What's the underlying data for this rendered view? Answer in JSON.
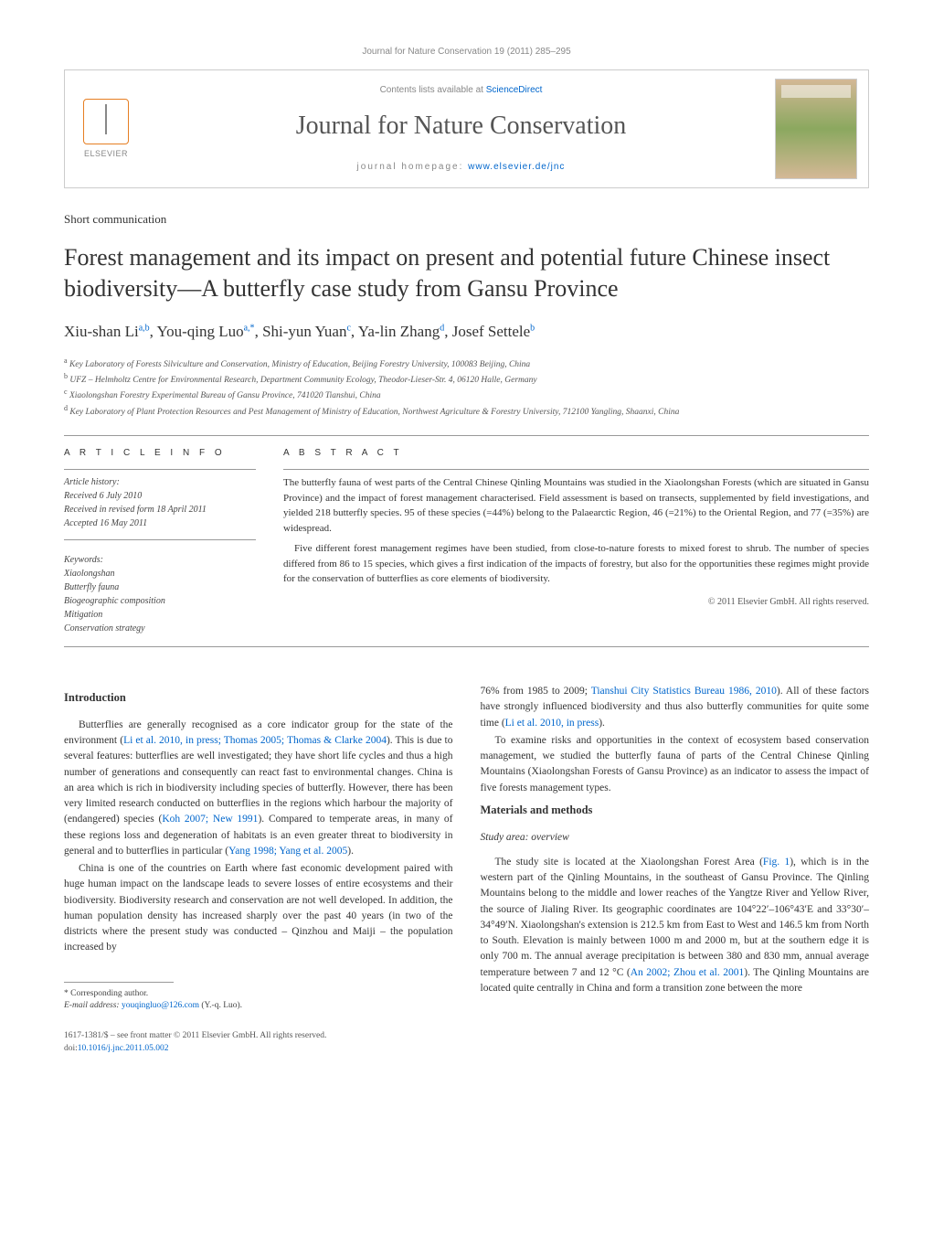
{
  "header": {
    "citation_line": "Journal for Nature Conservation 19 (2011) 285–295",
    "contents_prefix": "Contents lists available at ",
    "contents_link": "ScienceDirect",
    "journal_title": "Journal for Nature Conservation",
    "homepage_prefix": "journal homepage: ",
    "homepage_url": "www.elsevier.de/jnc",
    "elsevier_label": "ELSEVIER"
  },
  "article": {
    "type": "Short communication",
    "title": "Forest management and its impact on present and potential future Chinese insect biodiversity—A butterfly case study from Gansu Province",
    "authors_html": "Xiu-shan Li",
    "authors": [
      {
        "name": "Xiu-shan Li",
        "sup": "a,b"
      },
      {
        "name": "You-qing Luo",
        "sup": "a,*"
      },
      {
        "name": "Shi-yun Yuan",
        "sup": "c"
      },
      {
        "name": "Ya-lin Zhang",
        "sup": "d"
      },
      {
        "name": "Josef Settele",
        "sup": "b"
      }
    ],
    "affiliations": [
      {
        "sup": "a",
        "text": "Key Laboratory of Forests Silviculture and Conservation, Ministry of Education, Beijing Forestry University, 100083 Beijing, China"
      },
      {
        "sup": "b",
        "text": "UFZ – Helmholtz Centre for Environmental Research, Department Community Ecology, Theodor-Lieser-Str. 4, 06120 Halle, Germany"
      },
      {
        "sup": "c",
        "text": "Xiaolongshan Forestry Experimental Bureau of Gansu Province, 741020 Tianshui, China"
      },
      {
        "sup": "d",
        "text": "Key Laboratory of Plant Protection Resources and Pest Management of Ministry of Education, Northwest Agriculture & Forestry University, 712100 Yangling, Shaanxi, China"
      }
    ]
  },
  "info": {
    "heading": "A R T I C L E   I N F O",
    "history_label": "Article history:",
    "history": [
      "Received 6 July 2010",
      "Received in revised form 18 April 2011",
      "Accepted 16 May 2011"
    ],
    "keywords_label": "Keywords:",
    "keywords": [
      "Xiaolongshan",
      "Butterfly fauna",
      "Biogeographic composition",
      "Mitigation",
      "Conservation strategy"
    ]
  },
  "abstract": {
    "heading": "A B S T R A C T",
    "paragraphs": [
      "The butterfly fauna of west parts of the Central Chinese Qinling Mountains was studied in the Xiaolongshan Forests (which are situated in Gansu Province) and the impact of forest management characterised. Field assessment is based on transects, supplemented by field investigations, and yielded 218 butterfly species. 95 of these species (=44%) belong to the Palaearctic Region, 46 (=21%) to the Oriental Region, and 77 (=35%) are widespread.",
      "Five different forest management regimes have been studied, from close-to-nature forests to mixed forest to shrub. The number of species differed from 86 to 15 species, which gives a first indication of the impacts of forestry, but also for the opportunities these regimes might provide for the conservation of butterflies as core elements of biodiversity."
    ],
    "copyright": "© 2011 Elsevier GmbH. All rights reserved."
  },
  "body": {
    "left": {
      "h_intro": "Introduction",
      "p1a": "Butterflies are generally recognised as a core indicator group for the state of the environment (",
      "p1_ref1": "Li et al. 2010, in press; Thomas 2005; Thomas & Clarke 2004",
      "p1b": "). This is due to several features: butterflies are well investigated; they have short life cycles and thus a high number of generations and consequently can react fast to environmental changes. China is an area which is rich in biodiversity including species of butterfly. However, there has been very limited research conducted on butterflies in the regions which harbour the majority of (endangered) species (",
      "p1_ref2": "Koh 2007; New 1991",
      "p1c": "). Compared to temperate areas, in many of these regions loss and degeneration of habitats is an even greater threat to biodiversity in general and to butterflies in particular (",
      "p1_ref3": "Yang 1998; Yang et al. 2005",
      "p1d": ").",
      "p2": "China is one of the countries on Earth where fast economic development paired with huge human impact on the landscape leads to severe losses of entire ecosystems and their biodiversity. Biodiversity research and conservation are not well developed. In addition, the human population density has increased sharply over the past 40 years (in two of the districts where the present study was conducted – Qinzhou and Maiji – the population increased by"
    },
    "right": {
      "p1a": "76% from 1985 to 2009; ",
      "p1_ref1": "Tianshui City Statistics Bureau 1986, 2010",
      "p1b": "). All of these factors have strongly influenced biodiversity and thus also butterfly communities for quite some time (",
      "p1_ref2": "Li et al. 2010, in press",
      "p1c": ").",
      "p2": "To examine risks and opportunities in the context of ecosystem based conservation management, we studied the butterfly fauna of parts of the Central Chinese Qinling Mountains (Xiaolongshan Forests of Gansu Province) as an indicator to assess the impact of five forests management types.",
      "h_methods": "Materials and methods",
      "h_study": "Study area: overview",
      "p3a": "The study site is located at the Xiaolongshan Forest Area (",
      "p3_ref1": "Fig. 1",
      "p3b": "), which is in the western part of the Qinling Mountains, in the southeast of Gansu Province. The Qinling Mountains belong to the middle and lower reaches of the Yangtze River and Yellow River, the source of Jialing River. Its geographic coordinates are 104°22′–106°43′E and 33°30′–34°49′N. Xiaolongshan's extension is 212.5 km from East to West and 146.5 km from North to South. Elevation is mainly between 1000 m and 2000 m, but at the southern edge it is only 700 m. The annual average precipitation is between 380 and 830 mm, annual average temperature between 7 and 12 °C (",
      "p3_ref2": "An 2002; Zhou et al. 2001",
      "p3c": "). The Qinling Mountains are located quite centrally in China and form a transition zone between the more"
    }
  },
  "footnote": {
    "corr_label": "* Corresponding author.",
    "email_label": "E-mail address:",
    "email": "youqingluo@126.com",
    "email_who": "(Y.-q. Luo)."
  },
  "footer": {
    "line1": "1617-1381/$ – see front matter © 2011 Elsevier GmbH. All rights reserved.",
    "doi_prefix": "doi:",
    "doi": "10.1016/j.jnc.2011.05.002"
  },
  "colors": {
    "link": "#0066cc",
    "text": "#333333",
    "muted": "#888888",
    "rule": "#999999"
  }
}
